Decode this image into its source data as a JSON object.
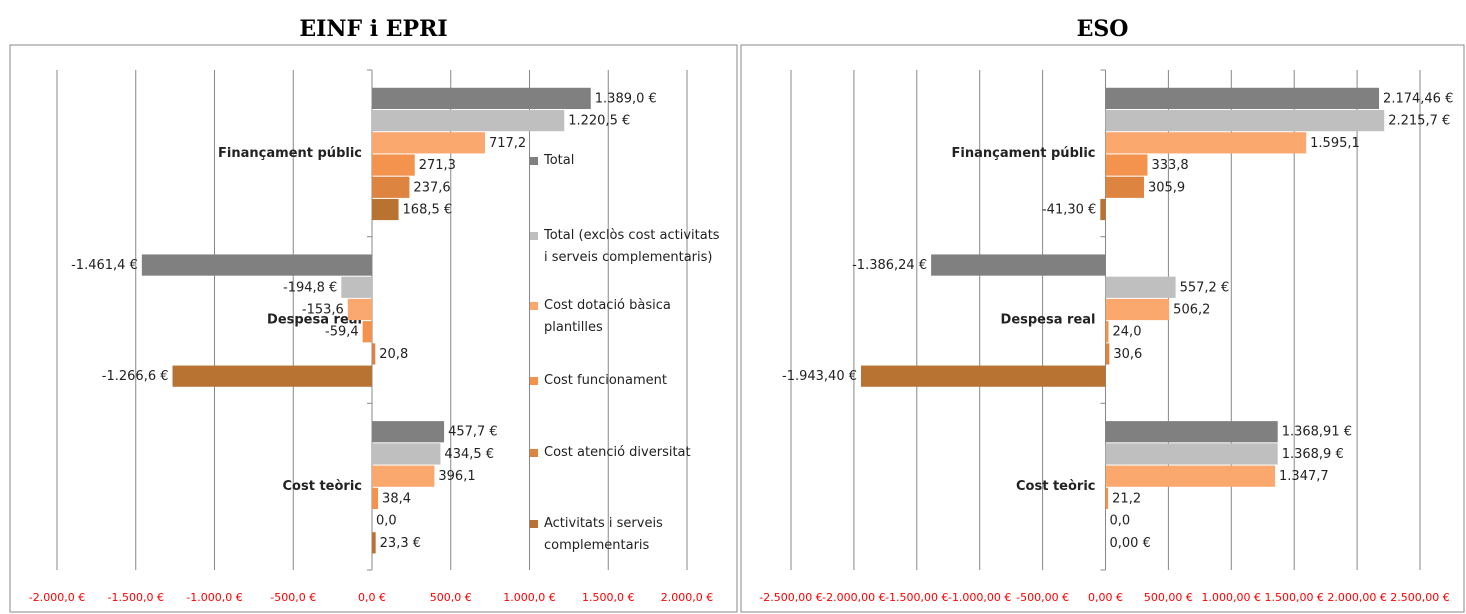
{
  "chart_data": [
    {
      "type": "bar",
      "orientation": "horizontal",
      "title": "EINF i EPRI",
      "categories": [
        "Finançament públic",
        "Despesa real",
        "Cost teòric"
      ],
      "xlim": [
        -2000,
        2000
      ],
      "xticks": [
        {
          "value": -2000,
          "label": "-2.000,0 €"
        },
        {
          "value": -1500,
          "label": "-1.500,0 €"
        },
        {
          "value": -1000,
          "label": "-1.000,0 €"
        },
        {
          "value": -500,
          "label": "-500,0 €"
        },
        {
          "value": 0,
          "label": "0,0 €"
        },
        {
          "value": 500,
          "label": "500,0 €"
        },
        {
          "value": 1000,
          "label": "1.000,0 €"
        },
        {
          "value": 1500,
          "label": "1.500,0 €"
        },
        {
          "value": 2000,
          "label": "2.000,0 €"
        }
      ],
      "grid": true,
      "legend": "right",
      "negative_label_color": "#ff0000",
      "series": [
        {
          "name": "Total",
          "color": "#808080",
          "values": [
            1389.0,
            -1461.4,
            457.7
          ],
          "value_labels": [
            "1.389,0 €",
            "-1.461,4 €",
            "457,7 €"
          ]
        },
        {
          "name": "Total (exclòs cost activitats i serveis complementaris)",
          "color": "#bfbfbf",
          "values": [
            1220.5,
            -194.8,
            434.5
          ],
          "value_labels": [
            "1.220,5 €",
            "-194,8 €",
            "434,5 €"
          ]
        },
        {
          "name": "Cost dotació bàsica plantilles",
          "color": "#fba86e",
          "values": [
            717.2,
            -153.6,
            396.1
          ],
          "value_labels": [
            "717,2",
            "-153,6",
            "396,1"
          ]
        },
        {
          "name": "Cost funcionament",
          "color": "#f3934d",
          "values": [
            271.3,
            -59.4,
            38.4
          ],
          "value_labels": [
            "271,3",
            "-59,4",
            "38,4"
          ]
        },
        {
          "name": "Cost atenció diversitat",
          "color": "#dd8540",
          "values": [
            237.6,
            20.8,
            0.0
          ],
          "value_labels": [
            "237,6",
            "20,8",
            "0,0"
          ]
        },
        {
          "name": "Activitats i serveis complementaris",
          "color": "#b87333",
          "values": [
            168.5,
            -1266.6,
            23.3
          ],
          "value_labels": [
            "168,5 €",
            "-1.266,6 €",
            "23,3 €"
          ]
        }
      ]
    },
    {
      "type": "bar",
      "orientation": "horizontal",
      "title": "ESO",
      "categories": [
        "Finançament públic",
        "Despesa real",
        "Cost teòric"
      ],
      "xlim": [
        -2500,
        2500
      ],
      "xticks": [
        {
          "value": -2500,
          "label": "-2.500,00 €"
        },
        {
          "value": -2000,
          "label": "-2.000,00 €"
        },
        {
          "value": -1500,
          "label": "-1.500,00 €"
        },
        {
          "value": -1000,
          "label": "-1.000,00 €"
        },
        {
          "value": -500,
          "label": "-500,00 €"
        },
        {
          "value": 0,
          "label": "0,00 €"
        },
        {
          "value": 500,
          "label": "500,00 €"
        },
        {
          "value": 1000,
          "label": "1.000,00 €"
        },
        {
          "value": 1500,
          "label": "1.500,00 €"
        },
        {
          "value": 2000,
          "label": "2.000,00 €"
        },
        {
          "value": 2500,
          "label": "2.500,00 €"
        }
      ],
      "grid": true,
      "negative_label_color": "#ff0000",
      "series": [
        {
          "color": "#808080",
          "values": [
            2174.46,
            -1386.24,
            1368.91
          ],
          "value_labels": [
            "2.174,46 €",
            "-1.386,24 €",
            "1.368,91 €"
          ]
        },
        {
          "color": "#bfbfbf",
          "values": [
            2215.7,
            557.2,
            1368.9
          ],
          "value_labels": [
            "2.215,7 €",
            "557,2 €",
            "1.368,9 €"
          ]
        },
        {
          "color": "#fba86e",
          "values": [
            1595.1,
            506.2,
            1347.7
          ],
          "value_labels": [
            "1.595,1",
            "506,2",
            "1.347,7"
          ]
        },
        {
          "color": "#f3934d",
          "values": [
            333.8,
            24.0,
            21.2
          ],
          "value_labels": [
            "333,8",
            "24,0",
            "21,2"
          ]
        },
        {
          "color": "#dd8540",
          "values": [
            305.9,
            30.6,
            0.0
          ],
          "value_labels": [
            "305,9",
            "30,6",
            "0,0"
          ]
        },
        {
          "color": "#b87333",
          "values": [
            -41.3,
            -1943.4,
            0.0
          ],
          "value_labels": [
            "-41,30 €",
            "-1.943,40 €",
            "0,00 €"
          ]
        }
      ]
    }
  ]
}
